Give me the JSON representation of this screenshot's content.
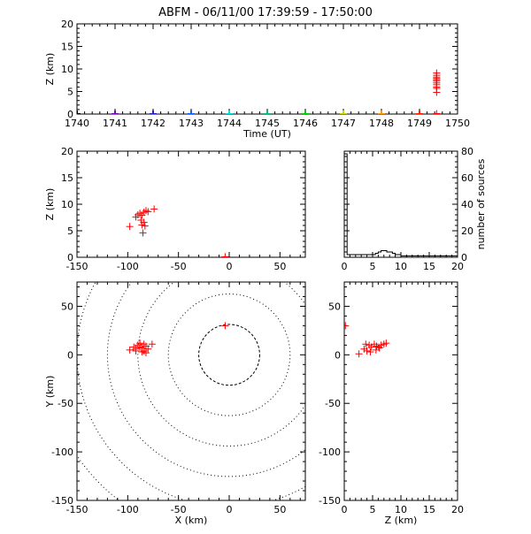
{
  "title": "ABFM - 06/11/00 17:39:59 - 17:50:00",
  "colors": {
    "source": "#ff0000",
    "axes": "#000000",
    "time_markers": [
      "#000000",
      "#7f00bf",
      "#2020c8",
      "#1060ff",
      "#00e0e0",
      "#00c080",
      "#00d000",
      "#c8d800",
      "#ff9a00",
      "#ff2000"
    ]
  },
  "chart_data": [
    {
      "id": "time-height",
      "type": "scatter",
      "xlabel": "Time (UT)",
      "ylabel": "Z (km)",
      "xlim": [
        1740,
        1750
      ],
      "ylim": [
        0,
        20
      ],
      "xticks": [
        1740,
        1741,
        1742,
        1743,
        1744,
        1745,
        1746,
        1747,
        1748,
        1749,
        1750
      ],
      "yticks": [
        0,
        5,
        10,
        15,
        20
      ],
      "markers": {
        "name": "station time markers",
        "x": [
          1740,
          1741,
          1742,
          1743,
          1744,
          1745,
          1746,
          1747,
          1748,
          1749
        ],
        "y": [
          0,
          0,
          0,
          0,
          0,
          0,
          0,
          0,
          0,
          0
        ]
      },
      "series": [
        {
          "name": "sources",
          "x": [
            1749.45,
            1749.45,
            1749.45,
            1749.45,
            1749.45,
            1749.45,
            1749.45,
            1749.45,
            1749.45,
            1749.45,
            1749.45,
            1749.45
          ],
          "y": [
            9.1,
            8.6,
            8.2,
            7.9,
            7.6,
            7.3,
            6.9,
            6.5,
            6.0,
            5.7,
            4.8,
            0.1
          ]
        }
      ]
    },
    {
      "id": "x-z",
      "type": "scatter",
      "xlabel": "",
      "ylabel": "Z (km)",
      "xlim": [
        -150,
        75
      ],
      "ylim": [
        0,
        20
      ],
      "xticks": [
        -150,
        -100,
        -50,
        0,
        50
      ],
      "yticks": [
        0,
        5,
        10,
        15,
        20
      ],
      "series": [
        {
          "name": "sources",
          "x": [
            -98,
            -92,
            -90,
            -88,
            -86,
            -84,
            -82,
            -80,
            -86,
            -84,
            -83,
            -85,
            -74,
            -87,
            -4
          ],
          "y": [
            5.8,
            7.6,
            8.0,
            8.3,
            7.9,
            8.5,
            8.8,
            8.6,
            6.1,
            6.6,
            5.9,
            4.6,
            9.1,
            7.0,
            0.1
          ]
        }
      ]
    },
    {
      "id": "altitude-histogram",
      "type": "bar",
      "xlabel": "",
      "ylabel": "number of sources",
      "xlim": [
        0,
        20
      ],
      "ylim": [
        0,
        80
      ],
      "xticks": [
        0,
        5,
        10,
        15,
        20
      ],
      "yticks": [
        0,
        20,
        40,
        60,
        80
      ],
      "bin_edges": [
        0,
        0.5,
        1,
        1.5,
        2,
        2.5,
        3,
        3.5,
        4,
        4.5,
        5,
        5.5,
        6,
        6.5,
        7,
        7.5,
        8,
        8.5,
        9,
        9.5,
        10,
        10.5,
        11,
        11.5,
        12,
        12.5,
        13,
        13.5,
        14,
        14.5,
        15,
        15.5,
        16,
        16.5,
        17,
        17.5,
        18,
        18.5,
        19,
        19.5,
        20
      ],
      "values": [
        78,
        2,
        2,
        2,
        2,
        2,
        2,
        2,
        2,
        2,
        2,
        3,
        4,
        5,
        5,
        4,
        4,
        3,
        2,
        2,
        1,
        1,
        1,
        1,
        1,
        1,
        1,
        1,
        1,
        1,
        1,
        1,
        1,
        1,
        1,
        1,
        1,
        1,
        1,
        1
      ]
    },
    {
      "id": "plan-view",
      "type": "scatter",
      "xlabel": "X (km)",
      "ylabel": "Y (km)",
      "xlim": [
        -150,
        75
      ],
      "ylim": [
        -150,
        75
      ],
      "xticks": [
        -150,
        -100,
        -50,
        0,
        50
      ],
      "yticks": [
        -150,
        -100,
        -50,
        0,
        50
      ],
      "range_rings_km": [
        30,
        60,
        90,
        120,
        150,
        180
      ],
      "series": [
        {
          "name": "sources",
          "x": [
            -98,
            -94,
            -92,
            -90,
            -88,
            -86,
            -84,
            -82,
            -80,
            -88,
            -84,
            -76,
            -92,
            -86,
            -82,
            -4
          ],
          "y": [
            5,
            8,
            6,
            10,
            8,
            7,
            11,
            9,
            6,
            12,
            4,
            11,
            4,
            3,
            2,
            30
          ]
        }
      ]
    },
    {
      "id": "z-y",
      "type": "scatter",
      "xlabel": "Z (km)",
      "ylabel": "",
      "xlim": [
        0,
        20
      ],
      "ylim": [
        -150,
        75
      ],
      "xticks": [
        0,
        5,
        10,
        15,
        20
      ],
      "yticks": [
        -150,
        -100,
        -50,
        0,
        50
      ],
      "series": [
        {
          "name": "sources",
          "x": [
            2.6,
            3.5,
            4.0,
            4.4,
            4.8,
            5.3,
            5.7,
            6.1,
            6.5,
            7.0,
            7.4,
            3.8,
            4.6,
            5.6,
            6.2,
            0.2
          ],
          "y": [
            1,
            6,
            4,
            10,
            8,
            11,
            9,
            8,
            10,
            11,
            12,
            11,
            3,
            5,
            7,
            30
          ]
        }
      ]
    }
  ]
}
